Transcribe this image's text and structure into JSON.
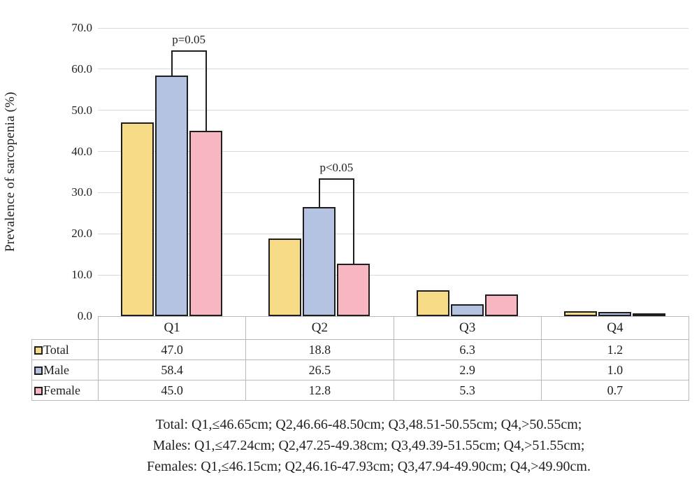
{
  "chart_data": {
    "type": "bar",
    "title": "",
    "xlabel": "",
    "ylabel": "Prevalence of sarcopenia (%)",
    "ylim": [
      0,
      70
    ],
    "ytick_step": 10,
    "ytick_labels": [
      "0.0",
      "10.0",
      "20.0",
      "30.0",
      "40.0",
      "50.0",
      "60.0",
      "70.0"
    ],
    "grid": true,
    "legend_position": "table-left",
    "categories": [
      "Q1",
      "Q2",
      "Q3",
      "Q4"
    ],
    "series": [
      {
        "name": "Total",
        "color": "#f8db86",
        "values": [
          47.0,
          18.8,
          6.3,
          1.2
        ]
      },
      {
        "name": "Male",
        "color": "#b5c3e2",
        "values": [
          58.4,
          26.5,
          2.9,
          1.0
        ]
      },
      {
        "name": "Female",
        "color": "#f8b7c0",
        "values": [
          45.0,
          12.8,
          5.3,
          0.7
        ]
      }
    ],
    "annotations": [
      {
        "label": "p=0.05",
        "category_index": 0,
        "between": [
          "Male",
          "Female"
        ],
        "bracket_top_value": 64.5
      },
      {
        "label": "p<0.05",
        "category_index": 1,
        "between": [
          "Male",
          "Female"
        ],
        "bracket_top_value": 33.5
      }
    ]
  },
  "table": {
    "columns": [
      "Q1",
      "Q2",
      "Q3",
      "Q4"
    ],
    "rows": [
      {
        "label": "Total",
        "values": [
          "47.0",
          "18.8",
          "6.3",
          "1.2"
        ]
      },
      {
        "label": "Male",
        "values": [
          "58.4",
          "26.5",
          "2.9",
          "1.0"
        ]
      },
      {
        "label": "Female",
        "values": [
          "45.0",
          "12.8",
          "5.3",
          "0.7"
        ]
      }
    ]
  },
  "footnotes": [
    "Total: Q1,≤46.65cm; Q2,46.66-48.50cm; Q3,48.51-50.55cm; Q4,>50.55cm;",
    "Males: Q1,≤47.24cm; Q2,47.25-49.38cm; Q3,49.39-51.55cm; Q4,>51.55cm;",
    "Females: Q1,≤46.15cm; Q2,46.16-47.93cm; Q3,47.94-49.90cm; Q4,>49.90cm."
  ],
  "colors": {
    "bar_border": "#1e1e1e",
    "gridline": "#d9d9d9",
    "table_border": "#b8b8b8",
    "text": "#1f1f1f",
    "background": "#ffffff"
  }
}
